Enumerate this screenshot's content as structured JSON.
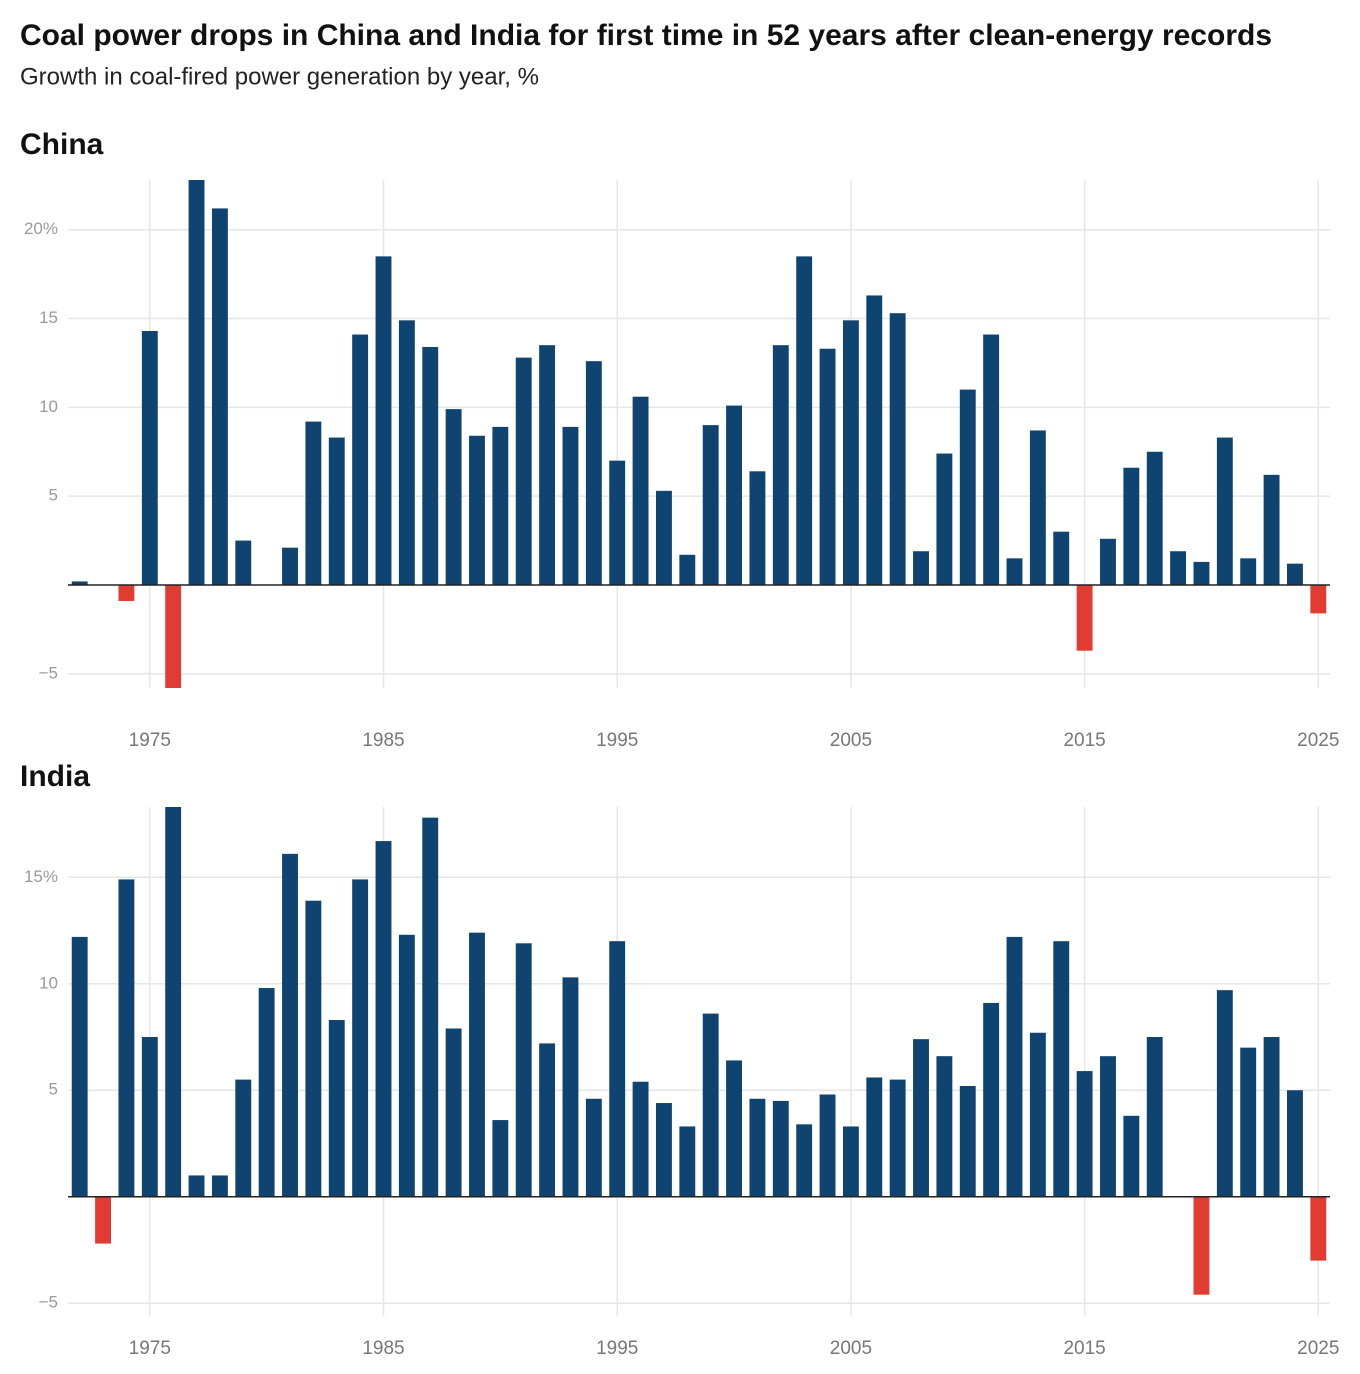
{
  "header": {
    "title": "Coal power drops in China and India for first time in 52 years after clean-energy records",
    "subtitle": "Growth in coal-fired power generation by year, %"
  },
  "chart_data": [
    {
      "type": "bar",
      "title": "China",
      "color": "#0f4470",
      "negative_color": "#e03c31",
      "grid": true,
      "x": [
        1972,
        1973,
        1974,
        1975,
        1976,
        1977,
        1978,
        1979,
        1980,
        1981,
        1982,
        1983,
        1984,
        1985,
        1986,
        1987,
        1988,
        1989,
        1990,
        1991,
        1992,
        1993,
        1994,
        1995,
        1996,
        1997,
        1998,
        1999,
        2000,
        2001,
        2002,
        2003,
        2004,
        2005,
        2006,
        2007,
        2008,
        2009,
        2010,
        2011,
        2012,
        2013,
        2014,
        2015,
        2016,
        2017,
        2018,
        2019,
        2020,
        2021,
        2022,
        2023,
        2024,
        2025
      ],
      "values": [
        0.2,
        0,
        -0.9,
        14.3,
        -5.8,
        22.8,
        21.2,
        2.5,
        0,
        2.1,
        9.2,
        8.3,
        14.1,
        18.5,
        14.9,
        13.4,
        9.9,
        8.4,
        8.9,
        12.8,
        13.5,
        8.9,
        12.6,
        7.0,
        10.6,
        5.3,
        1.7,
        9.0,
        10.1,
        6.4,
        13.5,
        18.5,
        13.3,
        14.9,
        16.3,
        15.3,
        1.9,
        7.4,
        11.0,
        14.1,
        1.5,
        8.7,
        3.0,
        -3.7,
        2.6,
        6.6,
        7.5,
        1.9,
        1.3,
        8.3,
        1.5,
        6.2,
        1.2,
        -1.6
      ],
      "xlim": [
        1971.5,
        2025.5
      ],
      "xticks": [
        1975,
        1985,
        1995,
        2005,
        2015,
        2025
      ],
      "ylim": [
        -5.8,
        22.8
      ],
      "yticks": [
        {
          "value": -5,
          "label": "−5"
        },
        5,
        10,
        15,
        {
          "value": 20,
          "label": "20%"
        }
      ]
    },
    {
      "type": "bar",
      "title": "India",
      "color": "#0f4470",
      "negative_color": "#e03c31",
      "grid": true,
      "x": [
        1972,
        1973,
        1974,
        1975,
        1976,
        1977,
        1978,
        1979,
        1980,
        1981,
        1982,
        1983,
        1984,
        1985,
        1986,
        1987,
        1988,
        1989,
        1990,
        1991,
        1992,
        1993,
        1994,
        1995,
        1996,
        1997,
        1998,
        1999,
        2000,
        2001,
        2002,
        2003,
        2004,
        2005,
        2006,
        2007,
        2008,
        2009,
        2010,
        2011,
        2012,
        2013,
        2014,
        2015,
        2016,
        2017,
        2018,
        2019,
        2020,
        2021,
        2022,
        2023,
        2024,
        2025
      ],
      "values": [
        12.2,
        -2.2,
        14.9,
        7.5,
        18.3,
        1.0,
        1.0,
        5.5,
        9.8,
        16.1,
        13.9,
        8.3,
        14.9,
        16.7,
        12.3,
        17.8,
        7.9,
        12.4,
        3.6,
        11.9,
        7.2,
        10.3,
        4.6,
        12.0,
        5.4,
        4.4,
        3.3,
        8.6,
        6.4,
        4.6,
        4.5,
        3.4,
        4.8,
        3.3,
        5.6,
        5.5,
        7.4,
        6.6,
        5.2,
        9.1,
        12.2,
        7.7,
        12.0,
        5.9,
        6.6,
        3.8,
        7.5,
        0,
        -4.6,
        9.7,
        7.0,
        7.5,
        5.0,
        -3.0
      ],
      "xlim": [
        1971.5,
        2025.5
      ],
      "xticks": [
        1975,
        1985,
        1995,
        2005,
        2015,
        2025
      ],
      "ylim": [
        -5.6,
        18.3
      ],
      "yticks": [
        {
          "value": -5,
          "label": "−5"
        },
        5,
        10,
        {
          "value": 15,
          "label": "15%"
        }
      ]
    }
  ]
}
